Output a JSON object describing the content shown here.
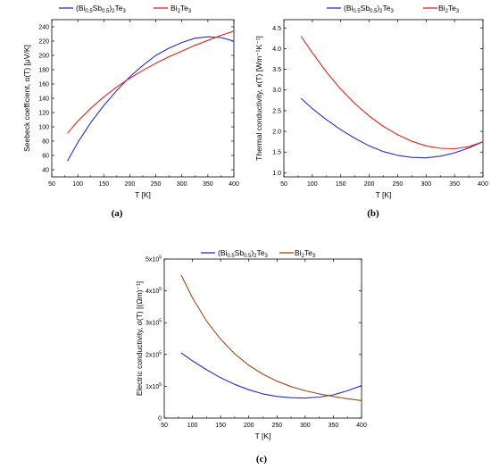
{
  "chart_data": [
    {
      "type": "line",
      "panel_label": "(a)",
      "xlabel": "T [K]",
      "ylabel": "Seebeck coefficient, α(T) [μV/K]",
      "xlim": [
        50,
        400
      ],
      "ylim": [
        30,
        250
      ],
      "xticks": [
        "50",
        "100",
        "150",
        "200",
        "250",
        "300",
        "350",
        "400"
      ],
      "yticks": [
        "40",
        "60",
        "80",
        "100",
        "120",
        "140",
        "160",
        "180",
        "200",
        "220",
        "240"
      ],
      "legend_position": "top",
      "series": [
        {
          "name": "(Bi0.5Sb0.5)2Te3",
          "color": "#2b2bd0",
          "x": [
            80,
            100,
            125,
            150,
            175,
            200,
            225,
            250,
            275,
            300,
            325,
            350,
            375,
            400
          ],
          "y": [
            52,
            78,
            106,
            130,
            151,
            170,
            186,
            200,
            210,
            218,
            224,
            226,
            225,
            220
          ]
        },
        {
          "name": "Bi2Te3",
          "color": "#e8201a",
          "x": [
            80,
            100,
            125,
            150,
            175,
            200,
            225,
            250,
            275,
            300,
            325,
            350,
            375,
            400
          ],
          "y": [
            91,
            108,
            126,
            142,
            156,
            168,
            179,
            189,
            198,
            206,
            214,
            221,
            228,
            234
          ]
        }
      ]
    },
    {
      "type": "line",
      "panel_label": "(b)",
      "xlabel": "T [K]",
      "ylabel": "Thermal conductivity, κ(T) [Wm⁻¹K⁻¹]",
      "xlim": [
        50,
        400
      ],
      "ylim": [
        0.9,
        4.7
      ],
      "xticks": [
        "50",
        "100",
        "150",
        "200",
        "250",
        "300",
        "350",
        "400"
      ],
      "yticks": [
        "1.0",
        "1.5",
        "2.0",
        "2.5",
        "3.0",
        "3.5",
        "4.0",
        "4.5"
      ],
      "legend_position": "top",
      "series": [
        {
          "name": "(Bi0.5Sb0.5)2Te3",
          "color": "#2b2bd0",
          "x": [
            80,
            100,
            125,
            150,
            175,
            200,
            225,
            250,
            275,
            300,
            325,
            350,
            375,
            400
          ],
          "y": [
            2.8,
            2.55,
            2.28,
            2.04,
            1.83,
            1.65,
            1.51,
            1.42,
            1.37,
            1.36,
            1.4,
            1.48,
            1.6,
            1.75
          ]
        },
        {
          "name": "Bi2Te3",
          "color": "#e8201a",
          "x": [
            80,
            100,
            125,
            150,
            175,
            200,
            225,
            250,
            275,
            300,
            325,
            350,
            375,
            400
          ],
          "y": [
            4.3,
            3.9,
            3.43,
            3.02,
            2.67,
            2.37,
            2.12,
            1.92,
            1.76,
            1.65,
            1.59,
            1.58,
            1.63,
            1.75
          ]
        }
      ]
    },
    {
      "type": "line",
      "panel_label": "(c)",
      "xlabel": "T [K]",
      "ylabel": "Electric conductivity, σ(T) [(Ωm)⁻¹]",
      "xlim": [
        50,
        400
      ],
      "ylim": [
        0,
        500000
      ],
      "xticks": [
        "50",
        "100",
        "150",
        "200",
        "250",
        "300",
        "350",
        "400"
      ],
      "yticks": [
        "0",
        "1x10⁵",
        "2x10⁵",
        "3x10⁵",
        "4x10⁵",
        "5x10⁵"
      ],
      "legend_position": "top",
      "series": [
        {
          "name": "(Bi0.5Sb0.5)2Te3",
          "color": "#2b2bd0",
          "x": [
            80,
            100,
            125,
            150,
            175,
            200,
            225,
            250,
            275,
            300,
            325,
            350,
            375,
            400
          ],
          "y": [
            205000,
            180000,
            152000,
            127000,
            106000,
            89000,
            76000,
            68000,
            64000,
            63000,
            66000,
            73000,
            86000,
            102000
          ]
        },
        {
          "name": "Bi2Te3",
          "color": "#9a4b16",
          "x": [
            80,
            100,
            125,
            150,
            175,
            200,
            225,
            250,
            275,
            300,
            325,
            350,
            375,
            400
          ],
          "y": [
            450000,
            378000,
            305000,
            248000,
            202000,
            166000,
            138000,
            116000,
            99000,
            86000,
            76000,
            68000,
            61000,
            55000
          ]
        }
      ]
    }
  ]
}
